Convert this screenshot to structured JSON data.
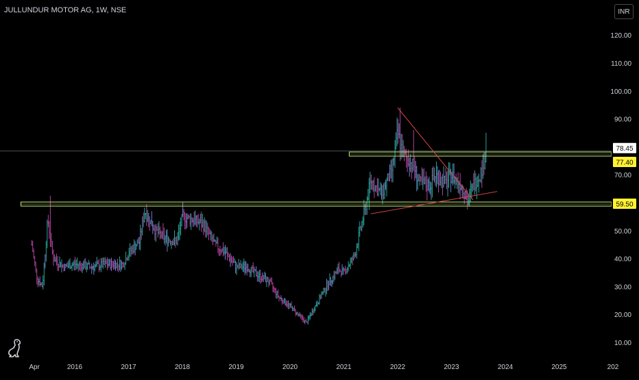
{
  "header": {
    "title": "JULLUNDUR MOTOR AG, 1W, NSE",
    "currency_button": "INR"
  },
  "colors": {
    "background": "#000000",
    "up": "#26a69a",
    "down": "#b3419e",
    "neutral": "#6f7fd0",
    "zone": "#c6ee78",
    "trendline": "#e04a4a",
    "axis_text": "#d1d4dc",
    "badge_yellow": "#fff134"
  },
  "icons": {
    "logo": "dinosaur-logo-icon"
  },
  "chart_data": {
    "type": "candlestick",
    "title": "JULLUNDUR MOTOR AG, 1W, NSE",
    "xlabel": "",
    "ylabel": "",
    "y_ticks": [
      10,
      20,
      30,
      40,
      50,
      60,
      70,
      80,
      90,
      100,
      110,
      120
    ],
    "y_tick_labels": [
      "10.00",
      "20.00",
      "30.00",
      "40.00",
      "50.00",
      "60.00",
      "70.00",
      "80.00",
      "90.00",
      "100.00",
      "110.00",
      "120.00"
    ],
    "x_ticks": [
      {
        "label": "Apr",
        "year": 2015.25
      },
      {
        "label": "2016",
        "year": 2016.0
      },
      {
        "label": "2017",
        "year": 2017.0
      },
      {
        "label": "2018",
        "year": 2018.0
      },
      {
        "label": "2019",
        "year": 2019.0
      },
      {
        "label": "2020",
        "year": 2020.0
      },
      {
        "label": "2021",
        "year": 2021.0
      },
      {
        "label": "2022",
        "year": 2022.0
      },
      {
        "label": "2023",
        "year": 2023.0
      },
      {
        "label": "2024",
        "year": 2024.0
      },
      {
        "label": "2025",
        "year": 2025.0
      },
      {
        "label": "202",
        "year": 2026.0
      }
    ],
    "ylim": [
      6,
      126
    ],
    "price_path": [
      [
        2015.2,
        45
      ],
      [
        2015.3,
        33
      ],
      [
        2015.4,
        30
      ],
      [
        2015.5,
        54
      ],
      [
        2015.6,
        40
      ],
      [
        2015.8,
        37
      ],
      [
        2016.0,
        38
      ],
      [
        2016.3,
        37
      ],
      [
        2016.6,
        38
      ],
      [
        2016.9,
        38
      ],
      [
        2017.0,
        42
      ],
      [
        2017.2,
        46
      ],
      [
        2017.3,
        57
      ],
      [
        2017.5,
        50
      ],
      [
        2017.7,
        47
      ],
      [
        2017.9,
        46
      ],
      [
        2018.0,
        55
      ],
      [
        2018.2,
        54
      ],
      [
        2018.4,
        52
      ],
      [
        2018.6,
        45
      ],
      [
        2018.8,
        42
      ],
      [
        2019.0,
        37
      ],
      [
        2019.2,
        37
      ],
      [
        2019.4,
        34
      ],
      [
        2019.6,
        32
      ],
      [
        2019.8,
        26
      ],
      [
        2020.0,
        23
      ],
      [
        2020.2,
        19
      ],
      [
        2020.3,
        17
      ],
      [
        2020.5,
        24
      ],
      [
        2020.7,
        31
      ],
      [
        2020.9,
        36
      ],
      [
        2021.0,
        35
      ],
      [
        2021.2,
        41
      ],
      [
        2021.3,
        50
      ],
      [
        2021.4,
        58
      ],
      [
        2021.5,
        68
      ],
      [
        2021.7,
        63
      ],
      [
        2021.9,
        72
      ],
      [
        2022.0,
        85
      ],
      [
        2022.1,
        77
      ],
      [
        2022.3,
        73
      ],
      [
        2022.4,
        67
      ],
      [
        2022.6,
        66
      ],
      [
        2022.7,
        70
      ],
      [
        2022.9,
        67
      ],
      [
        2023.0,
        70
      ],
      [
        2023.2,
        66
      ],
      [
        2023.3,
        60
      ],
      [
        2023.4,
        66
      ],
      [
        2023.55,
        71
      ],
      [
        2023.65,
        78.45
      ]
    ],
    "spikes": [
      {
        "year": 2015.55,
        "value": 62.5
      },
      {
        "year": 2018.0,
        "value": 59
      },
      {
        "year": 2022.05,
        "value": 94
      },
      {
        "year": 2022.3,
        "value": 86
      },
      {
        "year": 2023.65,
        "value": 85
      }
    ],
    "horizontal_levels": [
      {
        "value": 78.45,
        "label": "78.45",
        "style": "thin-line"
      },
      {
        "value": 77.4,
        "label": "77.40",
        "style": "zone",
        "from_year": 2021.1
      },
      {
        "value": 59.5,
        "label": "59.50",
        "style": "zone",
        "from_year": 2015.0
      }
    ],
    "trendlines": [
      {
        "from": [
          2022.0,
          94
        ],
        "to": [
          2023.4,
          61
        ]
      },
      {
        "from": [
          2021.5,
          56
        ],
        "to": [
          2023.85,
          64
        ]
      }
    ],
    "last_price": 78.45,
    "grid": false,
    "legend": "none"
  }
}
